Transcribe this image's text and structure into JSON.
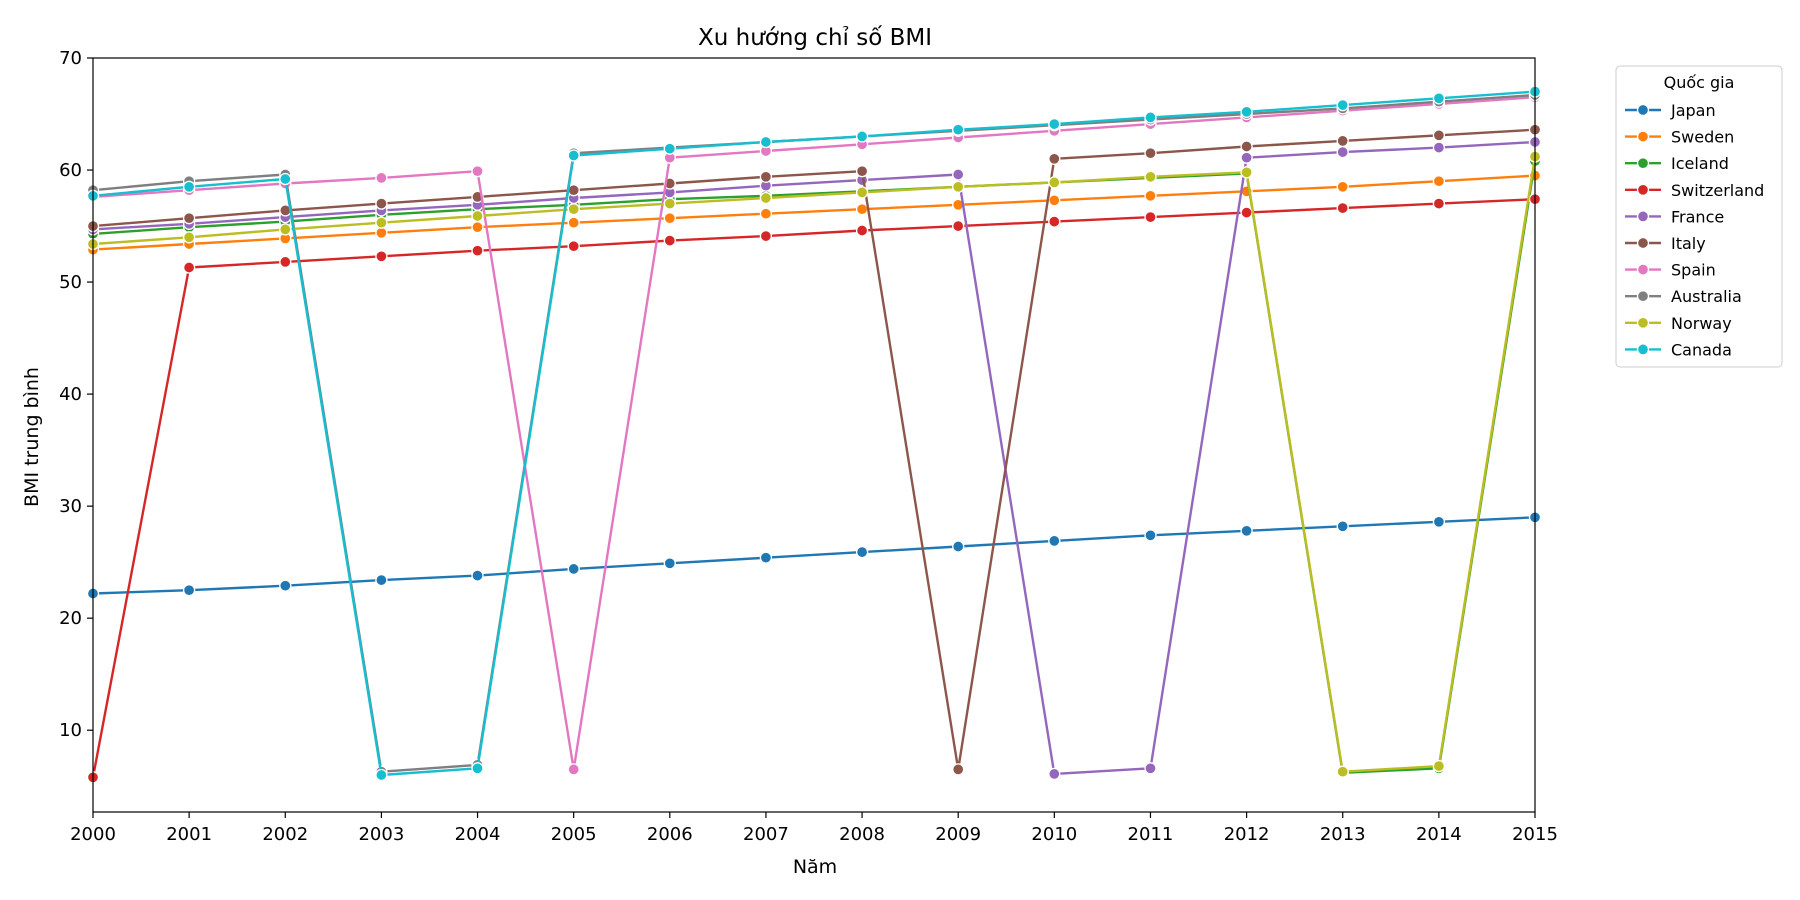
{
  "chart_data": {
    "type": "line",
    "title": "Xu hướng chỉ số BMI",
    "xlabel": "Năm",
    "ylabel": "BMI trung bình",
    "x": [
      2000,
      2001,
      2002,
      2003,
      2004,
      2005,
      2006,
      2007,
      2008,
      2009,
      2010,
      2011,
      2012,
      2013,
      2014,
      2015
    ],
    "xlim": [
      2000,
      2015
    ],
    "ylim": [
      2.7,
      70
    ],
    "yticks": [
      10,
      20,
      30,
      40,
      50,
      60,
      70
    ],
    "grid": false,
    "legend": {
      "title": "Quốc gia",
      "placement": "outside-top-right"
    },
    "series": [
      {
        "name": "Japan",
        "color": "#1f77b4",
        "values": [
          22.2,
          22.5,
          22.9,
          23.4,
          23.8,
          24.4,
          24.9,
          25.4,
          25.9,
          26.4,
          26.9,
          27.4,
          27.8,
          28.2,
          28.6,
          29.0
        ]
      },
      {
        "name": "Sweden",
        "color": "#ff7f0e",
        "values": [
          52.9,
          53.4,
          53.9,
          54.4,
          54.9,
          55.3,
          55.7,
          56.1,
          56.5,
          56.9,
          57.3,
          57.7,
          58.1,
          58.5,
          59.0,
          59.5
        ]
      },
      {
        "name": "Iceland",
        "color": "#2ca02c",
        "values": [
          54.3,
          54.9,
          55.4,
          56.0,
          56.5,
          56.9,
          57.4,
          57.7,
          58.1,
          58.5,
          58.9,
          59.3,
          59.7,
          6.2,
          6.6,
          60.8
        ]
      },
      {
        "name": "Switzerland",
        "color": "#d62728",
        "values": [
          5.8,
          51.3,
          51.8,
          52.3,
          52.8,
          53.2,
          53.7,
          54.1,
          54.6,
          55.0,
          55.4,
          55.8,
          56.2,
          56.6,
          57.0,
          57.4
        ]
      },
      {
        "name": "France",
        "color": "#9467bd",
        "values": [
          54.7,
          55.2,
          55.8,
          56.4,
          56.9,
          57.5,
          58.0,
          58.6,
          59.1,
          59.6,
          6.1,
          6.6,
          61.1,
          61.6,
          62.0,
          62.5
        ]
      },
      {
        "name": "Italy",
        "color": "#8c564b",
        "values": [
          55.0,
          55.7,
          56.4,
          57.0,
          57.6,
          58.2,
          58.8,
          59.4,
          59.9,
          6.5,
          61.0,
          61.5,
          62.1,
          62.6,
          63.1,
          63.6
        ]
      },
      {
        "name": "Spain",
        "color": "#e377c2",
        "values": [
          57.6,
          58.2,
          58.8,
          59.3,
          59.9,
          6.5,
          61.1,
          61.7,
          62.3,
          62.9,
          63.5,
          64.1,
          64.7,
          65.3,
          65.9,
          66.5
        ]
      },
      {
        "name": "Australia",
        "color": "#7f7f7f",
        "values": [
          58.2,
          59.0,
          59.6,
          6.3,
          6.9,
          61.5,
          62.0,
          62.5,
          63.0,
          63.5,
          64.0,
          64.5,
          65.0,
          65.5,
          66.1,
          66.7
        ]
      },
      {
        "name": "Norway",
        "color": "#bcbd22",
        "values": [
          53.4,
          54.0,
          54.7,
          55.3,
          55.9,
          56.5,
          57.0,
          57.5,
          58.0,
          58.5,
          58.9,
          59.4,
          59.8,
          6.3,
          6.8,
          61.2
        ]
      },
      {
        "name": "Canada",
        "color": "#17becf",
        "values": [
          57.7,
          58.5,
          59.2,
          6.0,
          6.6,
          61.3,
          61.9,
          62.5,
          63.0,
          63.6,
          64.1,
          64.7,
          65.2,
          65.8,
          66.4,
          67.0
        ]
      }
    ]
  }
}
